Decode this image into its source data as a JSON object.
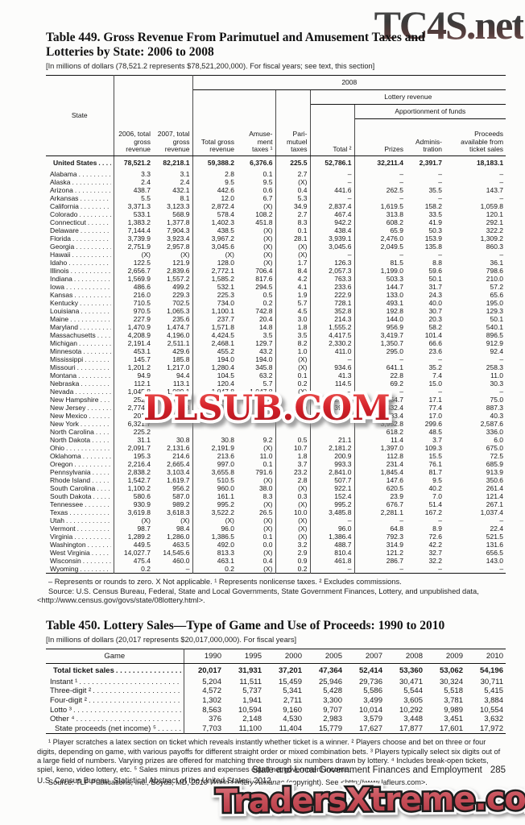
{
  "watermarks": {
    "top": "TC4S.net",
    "middle": "DLSUB.COM",
    "bottom": "TradersXtreme.com",
    "colors": {
      "dlsub_red": "#cc2027",
      "traders_red": "#c8505a",
      "tc4s_dark": "#3a3a3a"
    }
  },
  "table449": {
    "title_line1": "Table 449. Gross Revenue From Parimutuel and Amusement Taxes and",
    "title_line2": "Lotteries by State: 2006 to 2008",
    "note": "[In millions of dollars (78,521.2 represents $78,521,200,000). For fiscal years; see text, this section]",
    "headers": {
      "state": "State",
      "y2006": "2006, total gross revenue",
      "y2007": "2007, total gross revenue",
      "group_2008": "2008",
      "total_gross": "Total gross revenue",
      "amusement": "Amuse- ment taxes ¹",
      "parimutuel": "Pari- mutuel taxes",
      "group_lottery": "Lottery revenue",
      "group_apportionment": "Apportionment of funds",
      "total2": "Total ²",
      "prizes": "Prizes",
      "administration": "Adminis- tration",
      "proceeds": "Proceeds available from ticket sales"
    },
    "us_row": [
      "United States",
      "78,521.2",
      "82,218.1",
      "59,388.2",
      "6,376.6",
      "225.5",
      "52,786.1",
      "32,211.4",
      "2,391.7",
      "18,183.1"
    ],
    "rows": [
      [
        "Alabama",
        "3.3",
        "3.1",
        "2.8",
        "0.1",
        "2.7",
        "–",
        "–",
        "–",
        "–"
      ],
      [
        "Alaska",
        "2.4",
        "2.4",
        "9.5",
        "9.5",
        "(X)",
        "–",
        "–",
        "–",
        "–"
      ],
      [
        "Arizona",
        "438.7",
        "432.1",
        "442.6",
        "0.6",
        "0.4",
        "441.6",
        "262.5",
        "35.5",
        "143.7"
      ],
      [
        "Arkansas",
        "5.5",
        "8.1",
        "12.0",
        "6.7",
        "5.3",
        "–",
        "–",
        "–",
        "–"
      ],
      [
        "California",
        "3,371.3",
        "3,123.3",
        "2,872.4",
        "(X)",
        "34.9",
        "2,837.4",
        "1,619.5",
        "158.2",
        "1,059.8"
      ],
      [
        "Colorado",
        "533.1",
        "568.9",
        "578.4",
        "108.2",
        "2.7",
        "467.4",
        "313.8",
        "33.5",
        "120.1"
      ],
      [
        "Connecticut",
        "1,383.2",
        "1,377.8",
        "1,402.3",
        "451.8",
        "8.3",
        "942.2",
        "608.2",
        "41.9",
        "292.1"
      ],
      [
        "Delaware",
        "7,144.4",
        "7,904.3",
        "438.5",
        "(X)",
        "0.1",
        "438.4",
        "65.9",
        "50.3",
        "322.2"
      ],
      [
        "Florida",
        "3,739.9",
        "3,923.4",
        "3,967.2",
        "(X)",
        "28.1",
        "3,939.1",
        "2,476.0",
        "153.9",
        "1,309.2"
      ],
      [
        "Georgia",
        "2,751.9",
        "2,957.8",
        "3,045.6",
        "(X)",
        "(X)",
        "3,045.6",
        "2,049.5",
        "135.8",
        "860.3"
      ],
      [
        "Hawaii",
        "(X)",
        "(X)",
        "(X)",
        "(X)",
        "(X)",
        "–",
        "–",
        "–",
        "–"
      ],
      [
        "Idaho",
        "122.5",
        "121.9",
        "128.0",
        "(X)",
        "1.7",
        "126.3",
        "81.5",
        "8.8",
        "36.1"
      ],
      [
        "Illinois",
        "2,656.7",
        "2,839.6",
        "2,772.1",
        "706.4",
        "8.4",
        "2,057.3",
        "1,199.0",
        "59.6",
        "798.6"
      ],
      [
        "Indiana",
        "1,569.9",
        "1,557.2",
        "1,585.2",
        "817.6",
        "4.2",
        "763.3",
        "503.3",
        "50.1",
        "210.0"
      ],
      [
        "Iowa",
        "486.6",
        "499.2",
        "532.1",
        "294.5",
        "4.1",
        "233.6",
        "144.7",
        "31.7",
        "57.2"
      ],
      [
        "Kansas",
        "216.0",
        "229.3",
        "225.3",
        "0.5",
        "1.9",
        "222.9",
        "133.0",
        "24.3",
        "65.6"
      ],
      [
        "Kentucky",
        "710.5",
        "702.5",
        "734.0",
        "0.2",
        "5.7",
        "728.1",
        "493.1",
        "40.0",
        "195.0"
      ],
      [
        "Louisiana",
        "970.5",
        "1,065.3",
        "1,100.1",
        "742.8",
        "4.5",
        "352.8",
        "192.8",
        "30.7",
        "129.3"
      ],
      [
        "Maine",
        "227.9",
        "235.6",
        "237.7",
        "20.4",
        "3.0",
        "214.3",
        "144.0",
        "20.3",
        "50.1"
      ],
      [
        "Maryland",
        "1,470.9",
        "1,474.7",
        "1,571.8",
        "14.8",
        "1.8",
        "1,555.2",
        "956.9",
        "58.2",
        "540.1"
      ],
      [
        "Massachusetts",
        "4,208.9",
        "4,196.0",
        "4,424.5",
        "3.5",
        "3.5",
        "4,417.5",
        "3,419.7",
        "101.4",
        "896.5"
      ],
      [
        "Michigan",
        "2,191.4",
        "2,511.1",
        "2,468.1",
        "129.7",
        "8.2",
        "2,330.2",
        "1,350.7",
        "66.6",
        "912.9"
      ],
      [
        "Minnesota",
        "453.1",
        "429.6",
        "455.2",
        "43.2",
        "1.0",
        "411.0",
        "295.0",
        "23.6",
        "92.4"
      ],
      [
        "Mississippi",
        "145.7",
        "185.8",
        "194.0",
        "194.0",
        "(X)",
        "–",
        "–",
        "–",
        "–"
      ],
      [
        "Missouri",
        "1,201.2",
        "1,217.0",
        "1,280.4",
        "345.8",
        "(X)",
        "934.6",
        "641.1",
        "35.2",
        "258.3"
      ],
      [
        "Montana",
        "94.9",
        "94.4",
        "104.5",
        "63.2",
        "0.1",
        "41.3",
        "22.8",
        "7.4",
        "11.0"
      ],
      [
        "Nebraska",
        "112.1",
        "113.1",
        "120.4",
        "5.7",
        "0.2",
        "114.5",
        "69.2",
        "15.0",
        "30.3"
      ],
      [
        "Nevada",
        "1,045.8",
        "1,089.1",
        "1,047.8",
        "1,047.8",
        "(X)",
        "–",
        "–",
        "–",
        "–"
      ],
      [
        "New Hampshire",
        "252.1",
        "253.0",
        "250.0",
        "0.2",
        "2.9",
        "246.9",
        "154.7",
        "17.1",
        "75.0"
      ],
      [
        "New Jersey",
        "2,774.6",
        "2,669.8",
        "2,810.1",
        "413.0",
        "(X)",
        "2,397.1",
        "1,432.4",
        "77.4",
        "887.3"
      ],
      [
        "New Mexico",
        "201.7",
        "",
        "",
        "",
        "",
        "",
        "83.4",
        "17.0",
        "40.3"
      ],
      [
        "New York",
        "6,321.7",
        "",
        "",
        "",
        "",
        "",
        "3,952.8",
        "299.6",
        "2,587.6"
      ],
      [
        "North Carolina",
        "225.2",
        "",
        "",
        "",
        "",
        "",
        "618.2",
        "48.5",
        "336.0"
      ],
      [
        "North Dakota",
        "31.1",
        "30.8",
        "30.8",
        "9.2",
        "0.5",
        "21.1",
        "11.4",
        "3.7",
        "6.0"
      ],
      [
        "Ohio",
        "2,091.7",
        "2,131.6",
        "2,191.9",
        "(X)",
        "10.7",
        "2,181.2",
        "1,397.0",
        "109.3",
        "675.0"
      ],
      [
        "Oklahoma",
        "195.3",
        "214.6",
        "213.6",
        "11.0",
        "1.8",
        "200.9",
        "112.8",
        "15.5",
        "72.5"
      ],
      [
        "Oregon",
        "2,216.4",
        "2,665.4",
        "997.0",
        "0.1",
        "3.7",
        "993.3",
        "231.4",
        "76.1",
        "685.9"
      ],
      [
        "Pennsylvania",
        "2,838.2",
        "3,103.4",
        "3,655.8",
        "791.6",
        "23.2",
        "2,841.0",
        "1,845.4",
        "81.7",
        "913.9"
      ],
      [
        "Rhode Island",
        "1,542.7",
        "1,619.7",
        "510.5",
        "(X)",
        "2.8",
        "507.7",
        "147.6",
        "9.5",
        "350.6"
      ],
      [
        "South Carolina",
        "1,100.2",
        "956.2",
        "960.0",
        "38.0",
        "(X)",
        "922.1",
        "620.5",
        "40.2",
        "261.4"
      ],
      [
        "South Dakota",
        "580.6",
        "587.0",
        "161.1",
        "8.3",
        "0.3",
        "152.4",
        "23.9",
        "7.0",
        "121.4"
      ],
      [
        "Tennessee",
        "930.9",
        "989.2",
        "995.2",
        "(X)",
        "(X)",
        "995.2",
        "676.7",
        "51.4",
        "267.1"
      ],
      [
        "Texas",
        "3,619.8",
        "3,618.3",
        "3,522.2",
        "26.5",
        "10.0",
        "3,485.8",
        "2,281.1",
        "167.2",
        "1,037.4"
      ],
      [
        "Utah",
        "(X)",
        "(X)",
        "(X)",
        "(X)",
        "(X)",
        "–",
        "–",
        "–",
        "–"
      ],
      [
        "Vermont",
        "98.7",
        "98.4",
        "96.0",
        "(X)",
        "(X)",
        "96.0",
        "64.8",
        "8.9",
        "22.4"
      ],
      [
        "Virginia",
        "1,289.2",
        "1,286.0",
        "1,386.5",
        "0.1",
        "(X)",
        "1,386.4",
        "792.3",
        "72.6",
        "521.5"
      ],
      [
        "Washington",
        "449.5",
        "463.5",
        "492.0",
        "0.0",
        "3.2",
        "488.7",
        "314.9",
        "42.2",
        "131.6"
      ],
      [
        "West Virginia",
        "14,027.7",
        "14,545.6",
        "813.3",
        "(X)",
        "2.9",
        "810.4",
        "121.2",
        "32.7",
        "656.5"
      ],
      [
        "Wisconsin",
        "475.4",
        "460.0",
        "463.1",
        "0.4",
        "0.9",
        "461.8",
        "286.7",
        "32.2",
        "143.0"
      ],
      [
        "Wyoming",
        "0.2",
        "–",
        "0.2",
        "(X)",
        "0.2",
        "–",
        "–",
        "–",
        "–"
      ]
    ],
    "footnote": "– Represents or rounds to zero. X Not applicable. ¹ Represents nonlicense taxes. ² Excludes commissions.",
    "source": "Source: U.S. Census Bureau, Federal, State and Local Governments, State Government Finances, Lottery, and unpublished data, <http://www.census.gov/govs/state/08lottery.html>."
  },
  "table450": {
    "title": "Table 450. Lottery Sales—Type of Game and Use of Proceeds: 1990 to 2010",
    "note": "[In millions of dollars (20,017 represents $20,017,000,000). For fiscal years]",
    "headers": {
      "game": "Game",
      "years": [
        "1990",
        "1995",
        "2000",
        "2005",
        "2007",
        "2008",
        "2009",
        "2010"
      ]
    },
    "rows": [
      {
        "label": "Total ticket sales",
        "bold": true,
        "indent": false,
        "values": [
          "20,017",
          "31,931",
          "37,201",
          "47,364",
          "52,414",
          "53,360",
          "53,062",
          "54,196"
        ]
      },
      {
        "label": "Instant ¹",
        "bold": false,
        "indent": false,
        "values": [
          "5,204",
          "11,511",
          "15,459",
          "25,946",
          "29,736",
          "30,471",
          "30,324",
          "30,711"
        ]
      },
      {
        "label": "Three-digit ²",
        "bold": false,
        "indent": false,
        "values": [
          "4,572",
          "5,737",
          "5,341",
          "5,428",
          "5,586",
          "5,544",
          "5,518",
          "5,415"
        ]
      },
      {
        "label": "Four-digit ²",
        "bold": false,
        "indent": false,
        "values": [
          "1,302",
          "1,941",
          "2,711",
          "3,300",
          "3,499",
          "3,605",
          "3,781",
          "3,884"
        ]
      },
      {
        "label": "Lotto ³",
        "bold": false,
        "indent": false,
        "values": [
          "8,563",
          "10,594",
          "9,160",
          "9,707",
          "10,014",
          "10,292",
          "9,989",
          "10,554"
        ]
      },
      {
        "label": "Other ⁴",
        "bold": false,
        "indent": false,
        "values": [
          "376",
          "2,148",
          "4,530",
          "2,983",
          "3,579",
          "3,448",
          "3,451",
          "3,632"
        ]
      },
      {
        "label": "State proceeds (net income) ⁵",
        "bold": false,
        "indent": true,
        "values": [
          "7,703",
          "11,100",
          "11,404",
          "15,779",
          "17,627",
          "17,877",
          "17,601",
          "17,972"
        ]
      }
    ],
    "footnote": "¹ Player scratches a latex section on ticket which reveals instantly whether ticket is a winner. ² Players choose and bet on three or four digits, depending on game, with various payoffs for different straight order or mixed combination bets. ³ Players typically select six digits out of a large field of numbers. Varying prizes are offered for matching three through six numbers drawn by lottery. ⁴ Includes break-open tickets, spiel, keno, video lottery, etc. ⁵ Sales minus prizes and expenses equal net government income.",
    "source_pre": "Source: TLF Publications, Inc., Boyds, MD, ",
    "source_italic": "2010 World Lottery Almanac",
    "source_post": " (copyright). See <http://www.lafleurs.com>."
  },
  "footer": {
    "running_head": "State and Local Government Finances and Employment",
    "page_number": "285",
    "census_line": "U.S. Census Bureau, Statistical Abstract of the United States: 2012"
  }
}
